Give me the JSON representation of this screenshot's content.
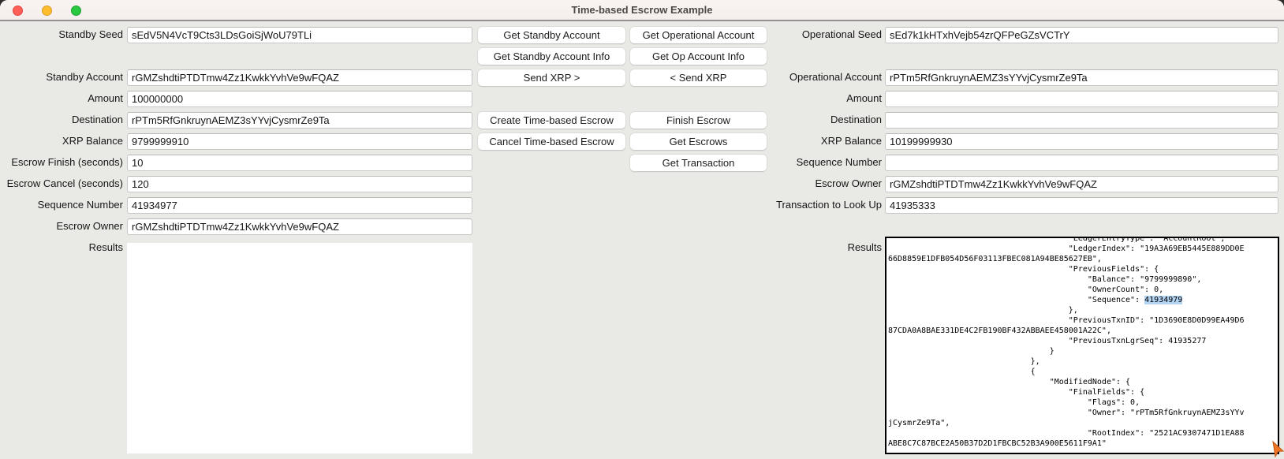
{
  "window": {
    "title": "Time-based Escrow Example"
  },
  "titlebar_controls": {
    "close": "close-button",
    "minimize": "minimize-button",
    "zoom": "zoom-button"
  },
  "left": {
    "fields": [
      {
        "label": "Standby Seed",
        "value": "sEdV5N4VcT9Cts3LDsGoiSjWoU79TLi"
      },
      {
        "label": "Standby Account",
        "value": "rGMZshdtiPTDTmw4Zz1KwkkYvhVe9wFQAZ"
      },
      {
        "label": "Amount",
        "value": "100000000"
      },
      {
        "label": "Destination",
        "value": "rPTm5RfGnkruynAEMZ3sYYvjCysmrZe9Ta"
      },
      {
        "label": "XRP Balance",
        "value": "9799999910"
      },
      {
        "label": "Escrow Finish (seconds)",
        "value": "10"
      },
      {
        "label": "Escrow Cancel (seconds)",
        "value": "120"
      },
      {
        "label": "Sequence Number",
        "value": "41934977"
      },
      {
        "label": "Escrow Owner",
        "value": "rGMZshdtiPTDTmw4Zz1KwkkYvhVe9wFQAZ"
      }
    ],
    "results_label": "Results",
    "results_text": ""
  },
  "buttons": {
    "col1": [
      "Get Standby Account",
      "Get Standby Account Info",
      "Send XRP >",
      "Create Time-based Escrow",
      "Cancel Time-based Escrow"
    ],
    "col2": [
      "Get Operational Account",
      "Get Op Account Info",
      "< Send XRP",
      "Finish Escrow",
      "Get Escrows",
      "Get Transaction"
    ]
  },
  "right": {
    "fields": [
      {
        "label": "Operational Seed",
        "value": "sEd7k1kHTxhVejb54zrQFPeGZsVCTrY"
      },
      {
        "label": "Operational Account",
        "value": "rPTm5RfGnkruynAEMZ3sYYvjCysmrZe9Ta"
      },
      {
        "label": "Amount",
        "value": ""
      },
      {
        "label": "Destination",
        "value": ""
      },
      {
        "label": "XRP Balance",
        "value": "10199999930"
      },
      {
        "label": "Sequence Number",
        "value": ""
      },
      {
        "label": "Escrow Owner",
        "value": "rGMZshdtiPTDTmw4Zz1KwkkYvhVe9wFQAZ"
      },
      {
        "label": "Transaction to Look Up",
        "value": "41935333"
      }
    ],
    "results_label": "Results",
    "results": {
      "selection_color": "#b3d3f3",
      "lines": [
        {
          "t": "                                      \"LedgerEntryType\": \"AccountRoot\","
        },
        {
          "t": "                                      \"LedgerIndex\": \"19A3A69EB5445E889DD0E"
        },
        {
          "t": "66D8859E1DFB054D56F03113FBEC081A94BE85627EB\","
        },
        {
          "t": "                                      \"PreviousFields\": {"
        },
        {
          "t": "                                          \"Balance\": \"9799999890\","
        },
        {
          "t": "                                          \"OwnerCount\": 0,"
        },
        {
          "t": "                                          \"Sequence\": ",
          "hl": "41934979"
        },
        {
          "t": "                                      },"
        },
        {
          "t": "                                      \"PreviousTxnID\": \"1D3690E8D0D99EA49D6"
        },
        {
          "t": "87CDA0A8BAE331DE4C2FB190BF432ABBAEE458001A22C\","
        },
        {
          "t": "                                      \"PreviousTxnLgrSeq\": 41935277"
        },
        {
          "t": "                                  }"
        },
        {
          "t": "                              },"
        },
        {
          "t": "                              {"
        },
        {
          "t": "                                  \"ModifiedNode\": {"
        },
        {
          "t": "                                      \"FinalFields\": {"
        },
        {
          "t": "                                          \"Flags\": 0,"
        },
        {
          "t": "                                          \"Owner\": \"rPTm5RfGnkruynAEMZ3sYYv"
        },
        {
          "t": "jCysmrZe9Ta\","
        },
        {
          "t": "                                          \"RootIndex\": \"2521AC9307471D1EA88"
        },
        {
          "t": "ABE8C7C87BCE2A50B37D2D1FBCBC52B3A900E5611F9A1\""
        }
      ]
    }
  },
  "cursor_color": "#ed7524"
}
